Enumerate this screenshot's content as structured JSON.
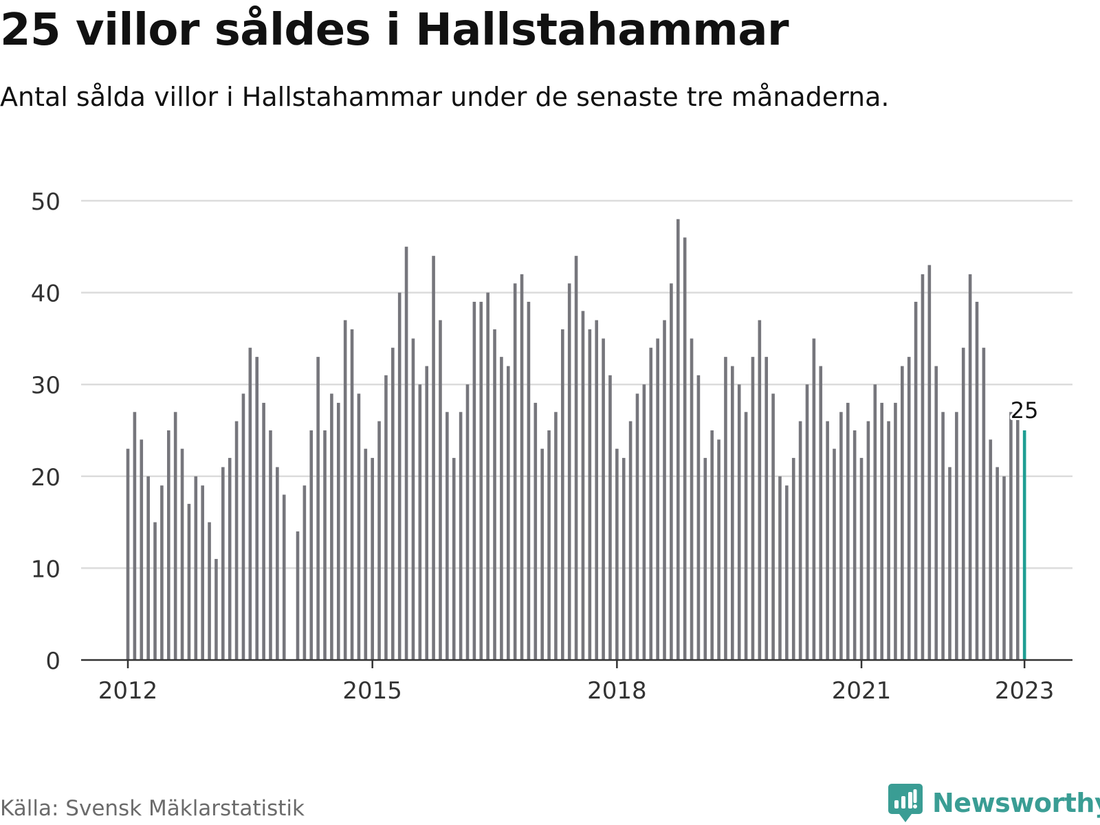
{
  "title": "25 villor såldes i Hallstahammar",
  "subtitle": "Antal sålda villor i Hallstahammar under de senaste tre månaderna.",
  "source": "Källa: Svensk Mäklarstatistik",
  "brand": {
    "name": "Newsworthy",
    "icon": "newsworthy-logo-icon",
    "color": "#3a9d94"
  },
  "colors": {
    "bar": "#76767c",
    "highlight": "#1f9e93",
    "grid": "#dcdcdc",
    "axis": "#333333"
  },
  "chart_data": {
    "type": "bar",
    "x_start": "2012-01",
    "x_end": "2023-01",
    "x_ticks": [
      "2012",
      "2015",
      "2018",
      "2021",
      "2023"
    ],
    "y_ticks": [
      "0",
      "10",
      "20",
      "30",
      "40",
      "50"
    ],
    "ylim": [
      0,
      50
    ],
    "grid": true,
    "values": [
      23,
      27,
      24,
      20,
      15,
      19,
      25,
      27,
      23,
      17,
      20,
      19,
      15,
      11,
      21,
      22,
      26,
      29,
      34,
      33,
      28,
      25,
      21,
      18,
      0,
      14,
      19,
      25,
      33,
      25,
      29,
      28,
      37,
      36,
      29,
      23,
      22,
      26,
      31,
      34,
      40,
      45,
      35,
      30,
      32,
      44,
      37,
      27,
      22,
      27,
      30,
      39,
      39,
      40,
      36,
      33,
      32,
      41,
      42,
      39,
      28,
      23,
      25,
      27,
      36,
      41,
      44,
      38,
      36,
      37,
      35,
      31,
      23,
      22,
      26,
      29,
      30,
      34,
      35,
      37,
      41,
      48,
      46,
      35,
      31,
      22,
      25,
      24,
      33,
      32,
      30,
      27,
      33,
      37,
      33,
      29,
      20,
      19,
      22,
      26,
      30,
      35,
      32,
      26,
      23,
      27,
      28,
      25,
      22,
      26,
      30,
      28,
      26,
      28,
      32,
      33,
      39,
      42,
      43,
      32,
      27,
      21,
      27,
      34,
      42,
      39,
      34,
      24,
      21,
      20,
      27,
      27,
      25
    ],
    "highlight_index": 132,
    "highlight_label": "25"
  }
}
